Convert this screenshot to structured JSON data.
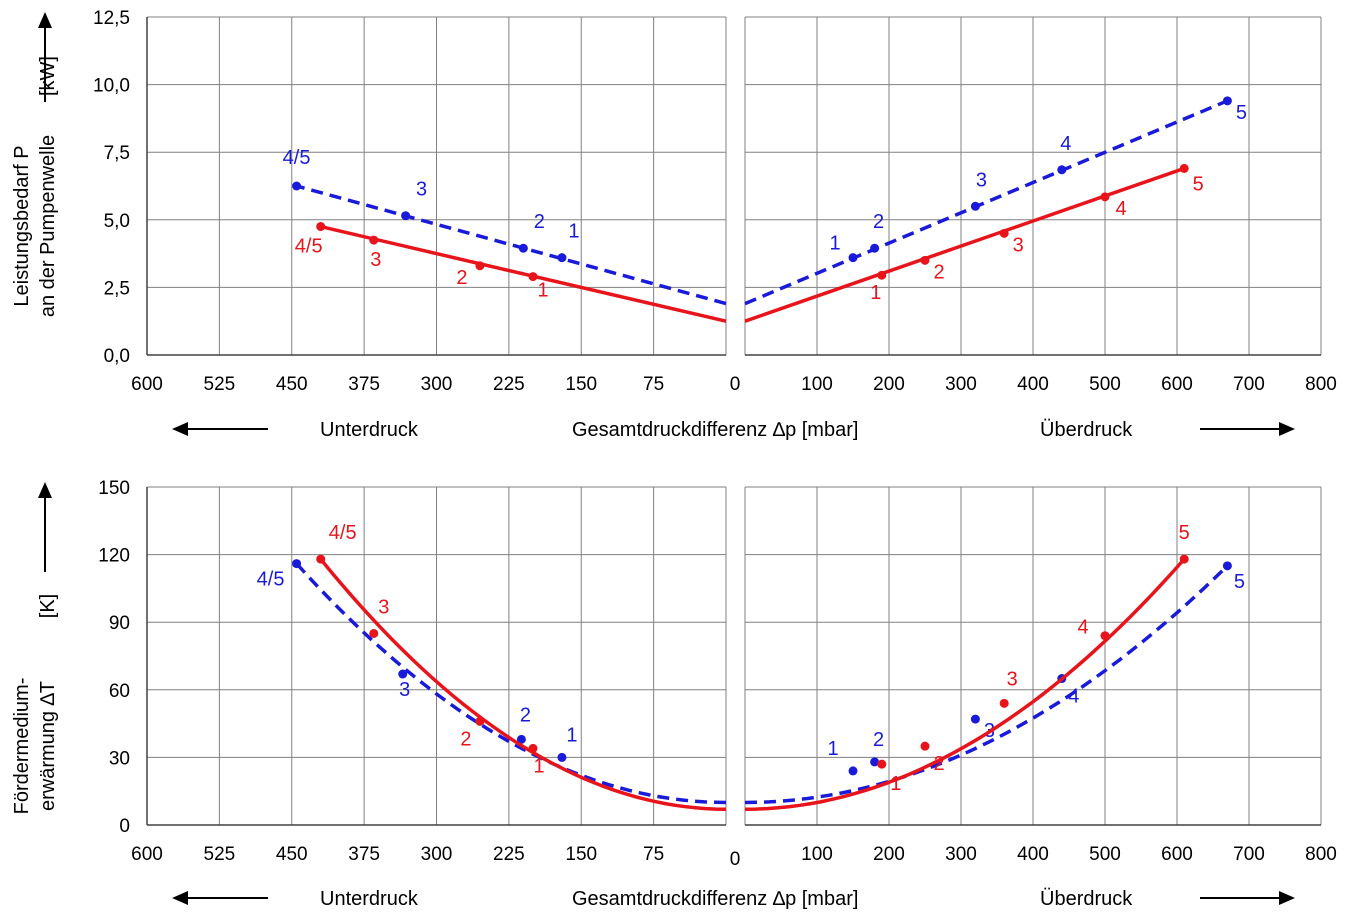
{
  "chart_data": [
    {
      "type": "line",
      "ylabel_lines": [
        "Leistungsbedarf P",
        "an der Pumpenwelle",
        "[kW]"
      ],
      "ytick_labels": [
        "0,0",
        "2,5",
        "5,0",
        "7,5",
        "10,0",
        "12,5"
      ],
      "ylim": [
        0,
        12.5
      ],
      "left_xtick_labels": [
        "600",
        "525",
        "450",
        "375",
        "300",
        "225",
        "150",
        "75"
      ],
      "right_xtick_labels": [
        "100",
        "200",
        "300",
        "400",
        "500",
        "600",
        "700",
        "800"
      ],
      "zero_label": "0",
      "left_xlim": [
        600,
        0
      ],
      "right_xlim": [
        0,
        800
      ],
      "xlabel": "Gesamtdruckdifferenz ∆p  [mbar]",
      "left_side_label": "Unterdruck",
      "right_side_label": "Überdruck",
      "grid": true,
      "series": [
        {
          "style": "dashed",
          "color": "#1a1adb",
          "left_line": [
            [
              0,
              1.9
            ],
            [
              445,
              6.25
            ]
          ],
          "left_points": [
            {
              "x": 445,
              "y": 6.25,
              "label": "4/5"
            },
            {
              "x": 332,
              "y": 5.15,
              "label": "3"
            },
            {
              "x": 210,
              "y": 3.95,
              "label": "2"
            },
            {
              "x": 170,
              "y": 3.6,
              "label": "1"
            }
          ],
          "right_line": [
            [
              0,
              1.9
            ],
            [
              670,
              9.4
            ]
          ],
          "right_points": [
            {
              "x": 150,
              "y": 3.6,
              "label": "1"
            },
            {
              "x": 180,
              "y": 3.95,
              "label": "2"
            },
            {
              "x": 320,
              "y": 5.5,
              "label": "3"
            },
            {
              "x": 440,
              "y": 6.85,
              "label": "4"
            },
            {
              "x": 670,
              "y": 9.4,
              "label": "5"
            }
          ]
        },
        {
          "style": "solid",
          "color": "#e8141b",
          "left_line": [
            [
              0,
              1.25
            ],
            [
              420,
              4.75
            ]
          ],
          "left_points": [
            {
              "x": 420,
              "y": 4.75,
              "label": "4/5"
            },
            {
              "x": 365,
              "y": 4.25,
              "label": "3"
            },
            {
              "x": 255,
              "y": 3.3,
              "label": "2"
            },
            {
              "x": 200,
              "y": 2.9,
              "label": "1"
            }
          ],
          "right_line": [
            [
              0,
              1.25
            ],
            [
              610,
              6.9
            ]
          ],
          "right_points": [
            {
              "x": 190,
              "y": 2.95,
              "label": "1"
            },
            {
              "x": 250,
              "y": 3.5,
              "label": "2"
            },
            {
              "x": 360,
              "y": 4.5,
              "label": "3"
            },
            {
              "x": 500,
              "y": 5.85,
              "label": "4"
            },
            {
              "x": 610,
              "y": 6.9,
              "label": "5"
            }
          ]
        }
      ]
    },
    {
      "type": "line",
      "ylabel_lines": [
        "Fördermedium-",
        "erwärmung  ∆T",
        "[K]"
      ],
      "ytick_labels": [
        "0",
        "30",
        "60",
        "90",
        "120",
        "150"
      ],
      "ylim": [
        0,
        150
      ],
      "left_xtick_labels": [
        "600",
        "525",
        "450",
        "375",
        "300",
        "225",
        "150",
        "75"
      ],
      "right_xtick_labels": [
        "100",
        "200",
        "300",
        "400",
        "500",
        "600",
        "700",
        "800"
      ],
      "zero_label": "0",
      "left_xlim": [
        600,
        0
      ],
      "right_xlim": [
        0,
        800
      ],
      "xlabel": "Gesamtdruckdifferenz ∆p  [mbar]",
      "left_side_label": "Unterdruck",
      "right_side_label": "Überdruck",
      "grid": true,
      "series": [
        {
          "style": "dashed",
          "color": "#1a1adb",
          "left_curve": {
            "y0": 10,
            "end_x": 445,
            "end_y": 116
          },
          "left_points": [
            {
              "x": 445,
              "y": 116,
              "label": "4/5"
            },
            {
              "x": 335,
              "y": 67,
              "label": "3"
            },
            {
              "x": 212,
              "y": 38,
              "label": "2"
            },
            {
              "x": 170,
              "y": 30,
              "label": "1"
            }
          ],
          "right_curve": {
            "y0": 10,
            "end_x": 670,
            "end_y": 115
          },
          "right_points": [
            {
              "x": 150,
              "y": 24,
              "label": "1"
            },
            {
              "x": 180,
              "y": 28,
              "label": "2"
            },
            {
              "x": 320,
              "y": 47,
              "label": "3"
            },
            {
              "x": 440,
              "y": 65,
              "label": "4"
            },
            {
              "x": 670,
              "y": 115,
              "label": "5"
            }
          ]
        },
        {
          "style": "solid",
          "color": "#e8141b",
          "left_curve": {
            "y0": 7,
            "end_x": 420,
            "end_y": 118
          },
          "left_points": [
            {
              "x": 420,
              "y": 118,
              "label": "4/5"
            },
            {
              "x": 365,
              "y": 85,
              "label": "3"
            },
            {
              "x": 255,
              "y": 46,
              "label": "2"
            },
            {
              "x": 200,
              "y": 34,
              "label": "1"
            }
          ],
          "right_curve": {
            "y0": 7,
            "end_x": 610,
            "end_y": 118
          },
          "right_points": [
            {
              "x": 190,
              "y": 27,
              "label": "1"
            },
            {
              "x": 250,
              "y": 35,
              "label": "2"
            },
            {
              "x": 360,
              "y": 54,
              "label": "3"
            },
            {
              "x": 500,
              "y": 84,
              "label": "4"
            },
            {
              "x": 610,
              "y": 118,
              "label": "5"
            }
          ]
        }
      ]
    }
  ]
}
